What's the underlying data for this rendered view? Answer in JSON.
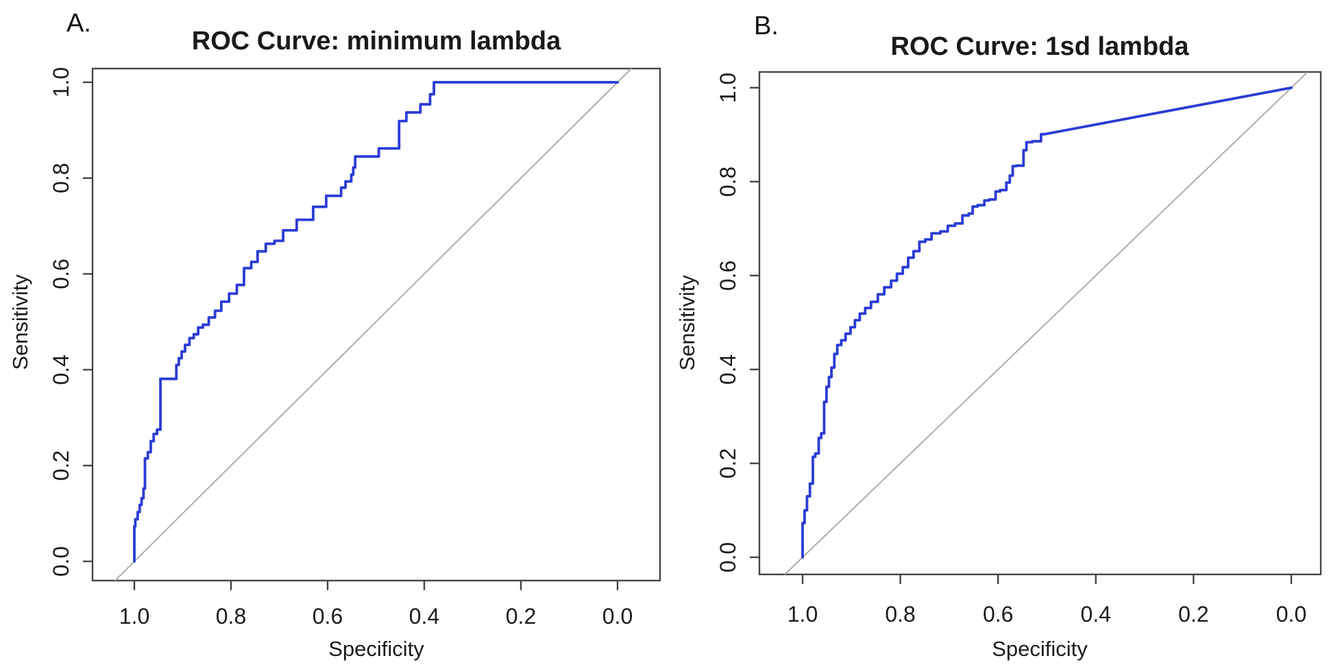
{
  "figure": {
    "background": "#ffffff",
    "description": "Two-panel base-R figure of ROC curves",
    "panel_count": 2
  },
  "chart_data": [
    {
      "type": "line",
      "subtype": "roc-step-curve",
      "panel_letter": "A.",
      "title": "ROC Curve: minimum lambda",
      "xlabel": "Specificity",
      "ylabel": "Sensitivity",
      "x_axis": {
        "range": [
          1.0,
          0.0
        ],
        "reversed": true,
        "ticks": [
          1.0,
          0.8,
          0.6,
          0.4,
          0.2,
          0.0
        ],
        "tick_labels": [
          "1.0",
          "0.8",
          "0.6",
          "0.4",
          "0.2",
          "0.0"
        ]
      },
      "y_axis": {
        "range": [
          0.0,
          1.0
        ],
        "ticks": [
          0.0,
          0.2,
          0.4,
          0.6,
          0.8,
          1.0
        ],
        "tick_labels": [
          "0.0",
          "0.2",
          "0.4",
          "0.6",
          "0.8",
          "1.0"
        ]
      },
      "grid": false,
      "legend": false,
      "reference_line": {
        "name": "chance-diagonal",
        "from": [
          1.0,
          0.0
        ],
        "to": [
          0.0,
          1.0
        ],
        "color": "#ADADAD"
      },
      "series": [
        {
          "name": "ROC curve (minimum lambda)",
          "color": "#2B3CD5",
          "points_spec_sens": [
            [
              1.0,
              0.0
            ],
            [
              0.998,
              0.073
            ],
            [
              0.993,
              0.088
            ],
            [
              0.989,
              0.103
            ],
            [
              0.985,
              0.118
            ],
            [
              0.981,
              0.132
            ],
            [
              0.978,
              0.152
            ],
            [
              0.972,
              0.215
            ],
            [
              0.966,
              0.228
            ],
            [
              0.96,
              0.251
            ],
            [
              0.953,
              0.266
            ],
            [
              0.946,
              0.275
            ],
            [
              0.913,
              0.381
            ],
            [
              0.908,
              0.41
            ],
            [
              0.902,
              0.424
            ],
            [
              0.895,
              0.438
            ],
            [
              0.886,
              0.452
            ],
            [
              0.877,
              0.466
            ],
            [
              0.868,
              0.474
            ],
            [
              0.858,
              0.488
            ],
            [
              0.846,
              0.494
            ],
            [
              0.833,
              0.509
            ],
            [
              0.82,
              0.523
            ],
            [
              0.804,
              0.542
            ],
            [
              0.788,
              0.559
            ],
            [
              0.773,
              0.577
            ],
            [
              0.758,
              0.612
            ],
            [
              0.745,
              0.625
            ],
            [
              0.728,
              0.647
            ],
            [
              0.71,
              0.663
            ],
            [
              0.692,
              0.669
            ],
            [
              0.664,
              0.691
            ],
            [
              0.63,
              0.713
            ],
            [
              0.603,
              0.74
            ],
            [
              0.572,
              0.763
            ],
            [
              0.563,
              0.78
            ],
            [
              0.551,
              0.793
            ],
            [
              0.547,
              0.807
            ],
            [
              0.543,
              0.822
            ],
            [
              0.494,
              0.845
            ],
            [
              0.452,
              0.862
            ],
            [
              0.437,
              0.919
            ],
            [
              0.408,
              0.937
            ],
            [
              0.388,
              0.954
            ],
            [
              0.38,
              0.975
            ],
            [
              0.366,
              1.0
            ],
            [
              0.0,
              1.0
            ]
          ],
          "tail_line": null
        }
      ]
    },
    {
      "type": "line",
      "subtype": "roc-step-curve",
      "panel_letter": "B.",
      "title": "ROC Curve: 1sd lambda",
      "xlabel": "Specificity",
      "ylabel": "Sensitivity",
      "x_axis": {
        "range": [
          1.0,
          0.0
        ],
        "reversed": true,
        "ticks": [
          1.0,
          0.8,
          0.6,
          0.4,
          0.2,
          0.0
        ],
        "tick_labels": [
          "1.0",
          "0.8",
          "0.6",
          "0.4",
          "0.2",
          "0.0"
        ]
      },
      "y_axis": {
        "range": [
          0.0,
          1.0
        ],
        "ticks": [
          0.0,
          0.2,
          0.4,
          0.6,
          0.8,
          1.0
        ],
        "tick_labels": [
          "0.0",
          "0.2",
          "0.4",
          "0.6",
          "0.8",
          "1.0"
        ]
      },
      "grid": false,
      "legend": false,
      "reference_line": {
        "name": "chance-diagonal",
        "from": [
          1.0,
          0.0
        ],
        "to": [
          0.0,
          1.0
        ],
        "color": "#ADADAD"
      },
      "series": [
        {
          "name": "ROC curve (1sd lambda)",
          "color": "#2B3CD5",
          "points_spec_sens": [
            [
              1.0,
              0.0
            ],
            [
              0.996,
              0.073
            ],
            [
              0.991,
              0.1
            ],
            [
              0.985,
              0.13
            ],
            [
              0.979,
              0.157
            ],
            [
              0.974,
              0.214
            ],
            [
              0.967,
              0.221
            ],
            [
              0.962,
              0.254
            ],
            [
              0.956,
              0.264
            ],
            [
              0.951,
              0.331
            ],
            [
              0.946,
              0.363
            ],
            [
              0.941,
              0.384
            ],
            [
              0.935,
              0.404
            ],
            [
              0.929,
              0.433
            ],
            [
              0.921,
              0.452
            ],
            [
              0.912,
              0.462
            ],
            [
              0.902,
              0.476
            ],
            [
              0.893,
              0.49
            ],
            [
              0.883,
              0.505
            ],
            [
              0.872,
              0.519
            ],
            [
              0.86,
              0.531
            ],
            [
              0.846,
              0.544
            ],
            [
              0.833,
              0.56
            ],
            [
              0.819,
              0.575
            ],
            [
              0.807,
              0.589
            ],
            [
              0.795,
              0.604
            ],
            [
              0.784,
              0.618
            ],
            [
              0.773,
              0.638
            ],
            [
              0.761,
              0.652
            ],
            [
              0.749,
              0.672
            ],
            [
              0.736,
              0.677
            ],
            [
              0.718,
              0.69
            ],
            [
              0.703,
              0.694
            ],
            [
              0.688,
              0.706
            ],
            [
              0.673,
              0.711
            ],
            [
              0.66,
              0.728
            ],
            [
              0.652,
              0.732
            ],
            [
              0.642,
              0.747
            ],
            [
              0.628,
              0.75
            ],
            [
              0.618,
              0.76
            ],
            [
              0.605,
              0.762
            ],
            [
              0.596,
              0.779
            ],
            [
              0.583,
              0.782
            ],
            [
              0.576,
              0.798
            ],
            [
              0.57,
              0.813
            ],
            [
              0.563,
              0.833
            ],
            [
              0.548,
              0.834
            ],
            [
              0.542,
              0.867
            ],
            [
              0.53,
              0.884
            ],
            [
              0.512,
              0.886
            ],
            [
              0.505,
              0.901
            ]
          ],
          "tail_line": {
            "to_spec_sens": [
              0.0,
              1.0
            ],
            "shape": "straight"
          }
        }
      ]
    }
  ],
  "colors": {
    "curve_blue": "#2B3CD5",
    "diagonal_gray": "#ADADAD",
    "axis_dark": "#454545",
    "text": "#1c1c1c"
  }
}
